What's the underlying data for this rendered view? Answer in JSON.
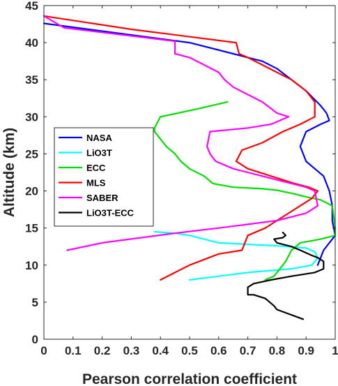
{
  "chart_data": {
    "type": "line",
    "title": "",
    "xlabel": "Pearson correlation coefficient",
    "ylabel": "Altitude (km)",
    "xlim": [
      0,
      1
    ],
    "ylim": [
      0,
      45
    ],
    "xticks": [
      "0",
      "0.1",
      "0.2",
      "0.3",
      "0.4",
      "0.5",
      "0.6",
      "0.7",
      "0.8",
      "0.9",
      "1"
    ],
    "yticks": [
      "0",
      "5",
      "10",
      "15",
      "20",
      "25",
      "30",
      "35",
      "40",
      "45"
    ],
    "grid": false,
    "legend_position": "middle-left",
    "series": [
      {
        "name": "NASA",
        "color": "#0000ff",
        "points": [
          [
            0,
            42.6
          ],
          [
            0.5,
            40
          ],
          [
            0.65,
            38.5
          ],
          [
            0.7,
            38
          ],
          [
            0.75,
            37.5
          ],
          [
            0.8,
            36.5
          ],
          [
            0.85,
            35
          ],
          [
            0.9,
            33.5
          ],
          [
            0.95,
            31.5
          ],
          [
            0.97,
            30.5
          ],
          [
            0.98,
            29.5
          ],
          [
            0.95,
            29
          ],
          [
            0.9,
            28
          ],
          [
            0.89,
            27
          ],
          [
            0.88,
            26
          ],
          [
            0.89,
            25
          ],
          [
            0.9,
            24
          ],
          [
            0.93,
            23
          ],
          [
            0.96,
            22
          ],
          [
            0.98,
            20
          ],
          [
            0.99,
            18
          ],
          [
            0.99,
            16
          ],
          [
            1.0,
            14
          ],
          [
            0.98,
            13
          ],
          [
            0.96,
            12
          ],
          [
            0.95,
            11
          ],
          [
            0.94,
            10
          ]
        ]
      },
      {
        "name": "LiO3T",
        "color": "#00ffff",
        "points": [
          [
            0.38,
            14.5
          ],
          [
            0.45,
            14.3
          ],
          [
            0.5,
            14
          ],
          [
            0.55,
            13.5
          ],
          [
            0.6,
            13
          ],
          [
            0.7,
            12.8
          ],
          [
            0.8,
            12.6
          ],
          [
            0.9,
            12.3
          ],
          [
            0.93,
            11.8
          ],
          [
            0.94,
            11
          ],
          [
            0.93,
            10.5
          ],
          [
            0.92,
            10
          ],
          [
            0.85,
            9.5
          ],
          [
            0.7,
            9
          ],
          [
            0.6,
            8.5
          ],
          [
            0.5,
            8
          ]
        ]
      },
      {
        "name": "ECC",
        "color": "#00dd00",
        "points": [
          [
            0.63,
            32
          ],
          [
            0.52,
            31
          ],
          [
            0.4,
            30
          ],
          [
            0.38,
            28.5
          ],
          [
            0.38,
            28
          ],
          [
            0.42,
            26
          ],
          [
            0.45,
            25
          ],
          [
            0.47,
            24
          ],
          [
            0.5,
            23
          ],
          [
            0.55,
            22
          ],
          [
            0.58,
            21
          ],
          [
            0.65,
            20.5
          ],
          [
            0.75,
            20.3
          ],
          [
            0.8,
            20.1
          ],
          [
            0.86,
            19.6
          ],
          [
            0.9,
            19.2
          ],
          [
            0.95,
            18.8
          ],
          [
            0.99,
            18
          ],
          [
            1.0,
            15
          ],
          [
            1.0,
            14
          ],
          [
            0.95,
            13.5
          ],
          [
            0.88,
            13
          ],
          [
            0.85,
            12
          ],
          [
            0.83,
            10.5
          ],
          [
            0.81,
            9.5
          ],
          [
            0.79,
            8.5
          ],
          [
            0.76,
            8
          ]
        ]
      },
      {
        "name": "MLS",
        "color": "#ff0000",
        "points": [
          [
            0,
            43.6
          ],
          [
            0.3,
            41.8
          ],
          [
            0.66,
            40
          ],
          [
            0.67,
            38.5
          ],
          [
            0.7,
            38
          ],
          [
            0.8,
            36
          ],
          [
            0.85,
            35
          ],
          [
            0.9,
            33.5
          ],
          [
            0.93,
            32
          ],
          [
            0.93,
            30
          ],
          [
            0.88,
            29
          ],
          [
            0.82,
            28
          ],
          [
            0.75,
            26.5
          ],
          [
            0.68,
            25.5
          ],
          [
            0.66,
            24
          ],
          [
            0.7,
            23
          ],
          [
            0.78,
            22
          ],
          [
            0.86,
            21
          ],
          [
            0.91,
            20.5
          ],
          [
            0.94,
            20
          ],
          [
            0.92,
            19
          ],
          [
            0.88,
            18
          ],
          [
            0.8,
            16
          ],
          [
            0.76,
            15
          ],
          [
            0.7,
            14
          ],
          [
            0.68,
            12
          ],
          [
            0.6,
            11.5
          ],
          [
            0.5,
            10
          ],
          [
            0.45,
            9
          ],
          [
            0.4,
            8
          ]
        ]
      },
      {
        "name": "SABER",
        "color": "#ff00ff",
        "points": [
          [
            0,
            43.6
          ],
          [
            0.07,
            42
          ],
          [
            0.45,
            40.2
          ],
          [
            0.45,
            38.5
          ],
          [
            0.5,
            38
          ],
          [
            0.6,
            36
          ],
          [
            0.62,
            35
          ],
          [
            0.65,
            34
          ],
          [
            0.75,
            32
          ],
          [
            0.8,
            30.5
          ],
          [
            0.84,
            30
          ],
          [
            0.78,
            29
          ],
          [
            0.7,
            28.5
          ],
          [
            0.57,
            28
          ],
          [
            0.56,
            26
          ],
          [
            0.57,
            25
          ],
          [
            0.59,
            24
          ],
          [
            0.65,
            23
          ],
          [
            0.75,
            22
          ],
          [
            0.85,
            21
          ],
          [
            0.9,
            20.5
          ],
          [
            0.93,
            20
          ],
          [
            0.94,
            18
          ],
          [
            0.9,
            17
          ],
          [
            0.8,
            16
          ],
          [
            0.7,
            15.5
          ],
          [
            0.6,
            15
          ],
          [
            0.45,
            14.3
          ],
          [
            0.2,
            13
          ],
          [
            0.08,
            12
          ]
        ]
      },
      {
        "name": "LiO3T-ECC",
        "color": "#000000",
        "points": [
          [
            0.89,
            2.7
          ],
          [
            0.8,
            4
          ],
          [
            0.79,
            4.5
          ],
          [
            0.76,
            5.5
          ],
          [
            0.72,
            6
          ],
          [
            0.7,
            6
          ],
          [
            0.7,
            7
          ],
          [
            0.72,
            7.5
          ],
          [
            0.78,
            8
          ],
          [
            0.85,
            8.5
          ],
          [
            0.93,
            9
          ],
          [
            0.96,
            9.5
          ],
          [
            0.96,
            10.5
          ],
          [
            0.94,
            11
          ],
          [
            0.92,
            11.3
          ],
          [
            0.88,
            12
          ],
          [
            0.85,
            12.5
          ],
          [
            0.8,
            13
          ],
          [
            0.79,
            13.5
          ],
          [
            0.82,
            13.7
          ],
          [
            0.83,
            14
          ],
          [
            0.82,
            14.4
          ]
        ]
      }
    ]
  }
}
